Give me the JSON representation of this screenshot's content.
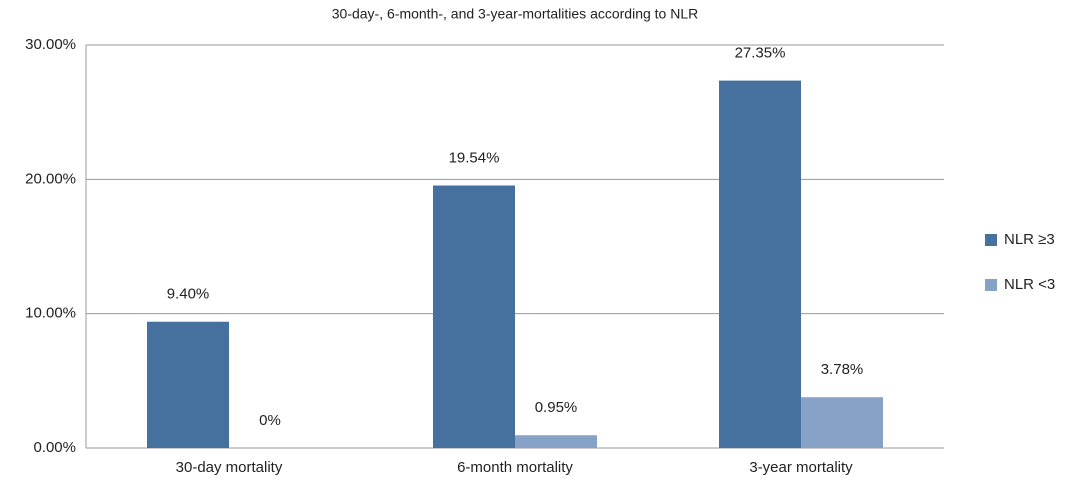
{
  "chart_data": {
    "type": "bar",
    "title": "30-day-, 6-month-, and 3-year-mortalities according to NLR",
    "categories": [
      "30-day mortality",
      "6-month mortality",
      "3-year mortality"
    ],
    "series": [
      {
        "name": "NLR ≥3",
        "color": "#46709e",
        "values": [
          9.4,
          19.54,
          27.35
        ],
        "value_labels": [
          "9.40%",
          "19.54%",
          "27.35%"
        ]
      },
      {
        "name": "NLR <3",
        "color": "#87a2c7",
        "values": [
          0,
          0.95,
          3.78
        ],
        "value_labels": [
          "0%",
          "0.95%",
          "3.78%"
        ]
      }
    ],
    "ylim": [
      0,
      30
    ],
    "yticks": [
      {
        "value": 0,
        "label": "0.00%"
      },
      {
        "value": 10,
        "label": "10.00%"
      },
      {
        "value": 20,
        "label": "20.00%"
      },
      {
        "value": 30,
        "label": "30.00%"
      }
    ],
    "grid": true,
    "legend": "right"
  }
}
